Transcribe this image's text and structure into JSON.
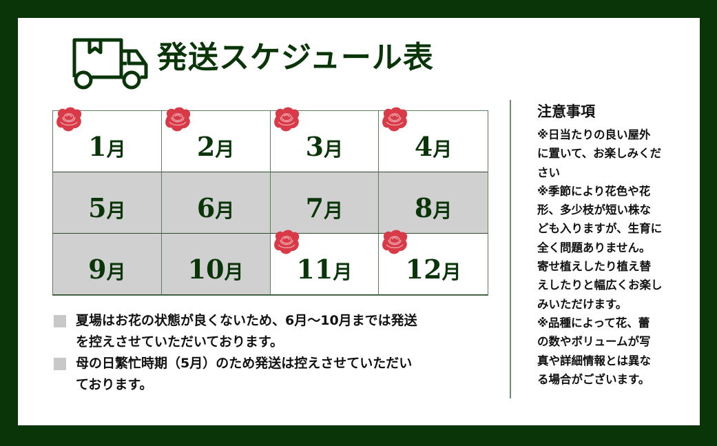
{
  "title": "発送スケジュール表",
  "colors": {
    "frame": "#0a3509",
    "off_cell": "#d0d0d0",
    "rose": "#d93a48"
  },
  "months": [
    {
      "num": "1",
      "unit": "月",
      "shipping": true,
      "rose": true
    },
    {
      "num": "2",
      "unit": "月",
      "shipping": true,
      "rose": true
    },
    {
      "num": "3",
      "unit": "月",
      "shipping": true,
      "rose": true
    },
    {
      "num": "4",
      "unit": "月",
      "shipping": true,
      "rose": true
    },
    {
      "num": "5",
      "unit": "月",
      "shipping": false,
      "rose": false
    },
    {
      "num": "6",
      "unit": "月",
      "shipping": false,
      "rose": false
    },
    {
      "num": "7",
      "unit": "月",
      "shipping": false,
      "rose": false
    },
    {
      "num": "8",
      "unit": "月",
      "shipping": false,
      "rose": false
    },
    {
      "num": "9",
      "unit": "月",
      "shipping": false,
      "rose": false
    },
    {
      "num": "10",
      "unit": "月",
      "shipping": false,
      "rose": false
    },
    {
      "num": "11",
      "unit": "月",
      "shipping": true,
      "rose": true
    },
    {
      "num": "12",
      "unit": "月",
      "shipping": true,
      "rose": true
    }
  ],
  "notes": [
    {
      "lines": [
        "夏場はお花の状態が良くないため、6月～10月までは発送",
        "を控えさせていただいております。"
      ]
    },
    {
      "lines": [
        "母の日繁忙時期（5月）のため発送は控えさせていただい",
        "ております。"
      ]
    }
  ],
  "caution": {
    "heading": "注意事項",
    "lines": [
      "※日当たりの良い屋外",
      "に置いて、お楽しみくだ",
      "さい",
      "※季節により花色や花",
      "形、多少枝が短い株な",
      "ども入りますが、生育に",
      "全く問題ありません。",
      "寄せ植えしたり植え替",
      "えしたりと幅広くお楽し",
      "みいただけます。",
      "※品種によって花、蕾",
      "の数やボリュームが写",
      "真や詳細情報とは異な",
      "る場合がございます。"
    ]
  }
}
